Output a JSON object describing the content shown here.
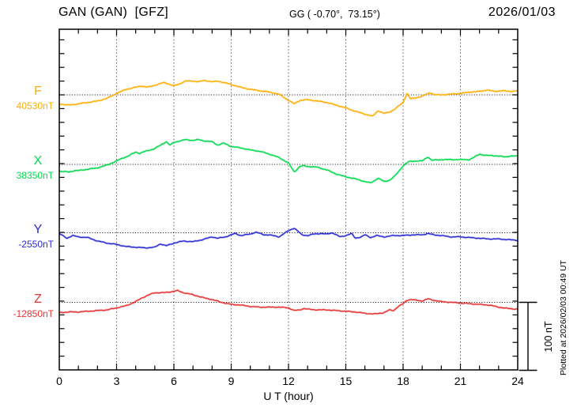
{
  "header": {
    "station_title": "GAN (GAN)  [GFZ]",
    "coordinates": "GG ( -0.70°,  73.15°)",
    "date": "2026/01/03"
  },
  "axis": {
    "x_ticks": [
      "0",
      "3",
      "6",
      "9",
      "12",
      "15",
      "18",
      "21",
      "24"
    ],
    "x_tick_hours": [
      0,
      3,
      6,
      9,
      12,
      15,
      18,
      21,
      24
    ],
    "x_label": "U T (hour)"
  },
  "scale_bar": {
    "label": "100 nT",
    "span_nT": 100
  },
  "footer_note": "Plotted at 2026/02/03 00:49 UT",
  "colors": {
    "F": "#FFAD00",
    "X": "#00D94C",
    "Y": "#2A2AD4",
    "Z": "#E63232",
    "frame": "#000000",
    "gridline": "#6e6e6e"
  },
  "chart_data": {
    "type": "line",
    "title": "GAN (GAN) [GFZ] magnetogram 2026/01/03",
    "xlabel": "U T (hour)",
    "x_range": [
      0,
      24
    ],
    "x_tick_interval_hours": 3,
    "grid": "dotted vertical every 3 h; dotted horizontal baseline per trace",
    "scale_bar_nT": 100,
    "series": [
      {
        "name": "F",
        "letter": "F",
        "base_label": "40530nT",
        "base_nT": 40530,
        "color": "#FFAD00",
        "points": [
          [
            0,
            40517
          ],
          [
            0.5,
            40515
          ],
          [
            1,
            40517
          ],
          [
            1.5,
            40519
          ],
          [
            2,
            40521
          ],
          [
            2.5,
            40525
          ],
          [
            3,
            40532
          ],
          [
            3.5,
            40538
          ],
          [
            4,
            40541
          ],
          [
            4.3,
            40543
          ],
          [
            4.6,
            40541
          ],
          [
            5,
            40544
          ],
          [
            5.5,
            40548
          ],
          [
            6,
            40543
          ],
          [
            6.3,
            40546
          ],
          [
            6.6,
            40550
          ],
          [
            7,
            40550
          ],
          [
            7.3,
            40549
          ],
          [
            7.6,
            40551
          ],
          [
            8,
            40549
          ],
          [
            8.3,
            40550
          ],
          [
            8.6,
            40548
          ],
          [
            9,
            40545
          ],
          [
            9.5,
            40541
          ],
          [
            10,
            40538
          ],
          [
            10.5,
            40536
          ],
          [
            11,
            40534
          ],
          [
            11.5,
            40531
          ],
          [
            12,
            40522
          ],
          [
            12.3,
            40517
          ],
          [
            12.6,
            40522
          ],
          [
            13,
            40523
          ],
          [
            13.5,
            40521
          ],
          [
            14,
            40519
          ],
          [
            14.5,
            40515
          ],
          [
            15,
            40511
          ],
          [
            15.5,
            40506
          ],
          [
            16,
            40502
          ],
          [
            16.4,
            40499
          ],
          [
            16.7,
            40507
          ],
          [
            17,
            40503
          ],
          [
            17.3,
            40505
          ],
          [
            17.6,
            40510
          ],
          [
            18,
            40519
          ],
          [
            18.2,
            40532
          ],
          [
            18.4,
            40524
          ],
          [
            18.7,
            40526
          ],
          [
            19,
            40528
          ],
          [
            19.4,
            40533
          ],
          [
            19.7,
            40530
          ],
          [
            20,
            40530
          ],
          [
            20.5,
            40531
          ],
          [
            21,
            40532
          ],
          [
            21.5,
            40534
          ],
          [
            22,
            40535
          ],
          [
            22.4,
            40537
          ],
          [
            22.8,
            40535
          ],
          [
            23.2,
            40536
          ],
          [
            23.6,
            40535
          ],
          [
            24,
            40536
          ]
        ]
      },
      {
        "name": "X",
        "letter": "X",
        "base_label": "38350nT",
        "base_nT": 38350,
        "color": "#00D94C",
        "points": [
          [
            0,
            38340
          ],
          [
            0.5,
            38339
          ],
          [
            0.8,
            38341
          ],
          [
            1,
            38341
          ],
          [
            1.5,
            38343
          ],
          [
            2,
            38345
          ],
          [
            2.5,
            38349
          ],
          [
            3,
            38355
          ],
          [
            3.3,
            38359
          ],
          [
            3.6,
            38362
          ],
          [
            4,
            38368
          ],
          [
            4.2,
            38366
          ],
          [
            4.5,
            38369
          ],
          [
            5,
            38373
          ],
          [
            5.3,
            38378
          ],
          [
            5.6,
            38383
          ],
          [
            5.8,
            38378
          ],
          [
            6,
            38382
          ],
          [
            6.3,
            38384
          ],
          [
            6.6,
            38386
          ],
          [
            7,
            38385
          ],
          [
            7.3,
            38386
          ],
          [
            7.6,
            38384
          ],
          [
            8,
            38383
          ],
          [
            8.3,
            38378
          ],
          [
            8.6,
            38381
          ],
          [
            9,
            38376
          ],
          [
            9.5,
            38374
          ],
          [
            10,
            38371
          ],
          [
            10.5,
            38369
          ],
          [
            11,
            38365
          ],
          [
            11.5,
            38360
          ],
          [
            12,
            38352
          ],
          [
            12.3,
            38339
          ],
          [
            12.6,
            38347
          ],
          [
            12.8,
            38348
          ],
          [
            13,
            38347
          ],
          [
            13.5,
            38346
          ],
          [
            14,
            38342
          ],
          [
            14.5,
            38336
          ],
          [
            15,
            38332
          ],
          [
            15.5,
            38329
          ],
          [
            16,
            38325
          ],
          [
            16.3,
            38323
          ],
          [
            16.7,
            38330
          ],
          [
            17,
            38325
          ],
          [
            17.3,
            38327
          ],
          [
            17.6,
            38334
          ],
          [
            18,
            38348
          ],
          [
            18.3,
            38354
          ],
          [
            18.6,
            38355
          ],
          [
            19,
            38355
          ],
          [
            19.3,
            38361
          ],
          [
            19.5,
            38356
          ],
          [
            20,
            38357
          ],
          [
            20.5,
            38357
          ],
          [
            21,
            38357
          ],
          [
            21.5,
            38357
          ],
          [
            22,
            38365
          ],
          [
            22.3,
            38363
          ],
          [
            22.6,
            38363
          ],
          [
            23,
            38362
          ],
          [
            23.3,
            38361
          ],
          [
            23.6,
            38362
          ],
          [
            24,
            38362
          ]
        ]
      },
      {
        "name": "Y",
        "letter": "Y",
        "base_label": "-2550nT",
        "base_nT": -2550,
        "color": "#2A2AD4",
        "points": [
          [
            0,
            -2551
          ],
          [
            0.4,
            -2558
          ],
          [
            0.7,
            -2554
          ],
          [
            1,
            -2556
          ],
          [
            1.5,
            -2557
          ],
          [
            2,
            -2562
          ],
          [
            2.5,
            -2565
          ],
          [
            3,
            -2567
          ],
          [
            3.5,
            -2570
          ],
          [
            4,
            -2571
          ],
          [
            4.5,
            -2572
          ],
          [
            5,
            -2571
          ],
          [
            5.3,
            -2566
          ],
          [
            5.6,
            -2569
          ],
          [
            6,
            -2565
          ],
          [
            6.5,
            -2562
          ],
          [
            7,
            -2563
          ],
          [
            7.5,
            -2560
          ],
          [
            8,
            -2556
          ],
          [
            8.3,
            -2558
          ],
          [
            8.7,
            -2556
          ],
          [
            9.2,
            -2551
          ],
          [
            9.5,
            -2554
          ],
          [
            10,
            -2552
          ],
          [
            10.3,
            -2549
          ],
          [
            10.7,
            -2553
          ],
          [
            11,
            -2553
          ],
          [
            11.5,
            -2556
          ],
          [
            12,
            -2547
          ],
          [
            12.3,
            -2543
          ],
          [
            12.7,
            -2553
          ],
          [
            13,
            -2554
          ],
          [
            13.3,
            -2552
          ],
          [
            13.7,
            -2551
          ],
          [
            14,
            -2552
          ],
          [
            14.3,
            -2550
          ],
          [
            14.7,
            -2556
          ],
          [
            15,
            -2554
          ],
          [
            15.3,
            -2551
          ],
          [
            15.5,
            -2558
          ],
          [
            15.8,
            -2556
          ],
          [
            16,
            -2553
          ],
          [
            16.3,
            -2557
          ],
          [
            16.6,
            -2554
          ],
          [
            17,
            -2556
          ],
          [
            17.5,
            -2554
          ],
          [
            18,
            -2554
          ],
          [
            18.5,
            -2553
          ],
          [
            19,
            -2553
          ],
          [
            19.3,
            -2551
          ],
          [
            19.6,
            -2553
          ],
          [
            20,
            -2554
          ],
          [
            20.5,
            -2556
          ],
          [
            21,
            -2556
          ],
          [
            21.5,
            -2557
          ],
          [
            22,
            -2558
          ],
          [
            22.5,
            -2559
          ],
          [
            23,
            -2559
          ],
          [
            23.5,
            -2560
          ],
          [
            24,
            -2561
          ]
        ]
      },
      {
        "name": "Z",
        "letter": "Z",
        "base_label": "-12850nT",
        "base_nT": -12850,
        "color": "#E63232",
        "points": [
          [
            0,
            -12865
          ],
          [
            0.5,
            -12864
          ],
          [
            1,
            -12864
          ],
          [
            1.5,
            -12863
          ],
          [
            2,
            -12862
          ],
          [
            2.5,
            -12861
          ],
          [
            3,
            -12858
          ],
          [
            3.5,
            -12855
          ],
          [
            4,
            -12849
          ],
          [
            4.3,
            -12844
          ],
          [
            4.7,
            -12839
          ],
          [
            5,
            -12836
          ],
          [
            5.5,
            -12836
          ],
          [
            6,
            -12834
          ],
          [
            6.2,
            -12833
          ],
          [
            6.5,
            -12836
          ],
          [
            7,
            -12839
          ],
          [
            7.5,
            -12843
          ],
          [
            8,
            -12846
          ],
          [
            8.5,
            -12850
          ],
          [
            9,
            -12853
          ],
          [
            9.5,
            -12854
          ],
          [
            10,
            -12856
          ],
          [
            10.5,
            -12857
          ],
          [
            11,
            -12857
          ],
          [
            11.5,
            -12857
          ],
          [
            12,
            -12858
          ],
          [
            12.3,
            -12862
          ],
          [
            12.6,
            -12861
          ],
          [
            12.8,
            -12859
          ],
          [
            13,
            -12860
          ],
          [
            13.5,
            -12861
          ],
          [
            14,
            -12861
          ],
          [
            14.5,
            -12862
          ],
          [
            15,
            -12863
          ],
          [
            15.5,
            -12864
          ],
          [
            16,
            -12866
          ],
          [
            16.5,
            -12867
          ],
          [
            17,
            -12865
          ],
          [
            17.3,
            -12861
          ],
          [
            17.5,
            -12862
          ],
          [
            17.7,
            -12857
          ],
          [
            18,
            -12852
          ],
          [
            18.2,
            -12847
          ],
          [
            18.4,
            -12846
          ],
          [
            18.7,
            -12847
          ],
          [
            19,
            -12848
          ],
          [
            19.3,
            -12845
          ],
          [
            19.6,
            -12847
          ],
          [
            20,
            -12849
          ],
          [
            20.5,
            -12850
          ],
          [
            21,
            -12851
          ],
          [
            21.5,
            -12852
          ],
          [
            22,
            -12853
          ],
          [
            22.5,
            -12854
          ],
          [
            23,
            -12857
          ],
          [
            23.5,
            -12859
          ],
          [
            24,
            -12860
          ]
        ]
      }
    ]
  }
}
